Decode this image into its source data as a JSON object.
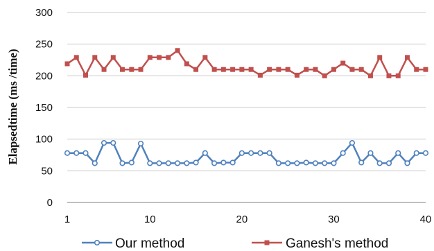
{
  "chart_data": {
    "type": "line",
    "title": "",
    "xlabel": "",
    "ylabel": "Elapsedtime (ms /time)",
    "xlim": [
      1,
      40
    ],
    "ylim": [
      0,
      300
    ],
    "x_ticks": [
      1,
      10,
      20,
      30,
      40
    ],
    "y_ticks": [
      0,
      50,
      100,
      150,
      200,
      250,
      300
    ],
    "grid": "horizontal",
    "legend_position": "bottom",
    "x": [
      1,
      2,
      3,
      4,
      5,
      6,
      7,
      8,
      9,
      10,
      11,
      12,
      13,
      14,
      15,
      16,
      17,
      18,
      19,
      20,
      21,
      22,
      23,
      24,
      25,
      26,
      27,
      28,
      29,
      30,
      31,
      32,
      33,
      34,
      35,
      36,
      37,
      38,
      39,
      40
    ],
    "series": [
      {
        "name": "Our method",
        "color": "#4F81BD",
        "marker": "circle",
        "values": [
          78,
          78,
          78,
          62,
          94,
          94,
          62,
          63,
          93,
          62,
          62,
          62,
          62,
          62,
          63,
          78,
          62,
          63,
          63,
          78,
          78,
          78,
          78,
          62,
          62,
          62,
          63,
          62,
          62,
          62,
          78,
          94,
          63,
          78,
          62,
          62,
          78,
          62,
          78,
          78
        ]
      },
      {
        "name": "Ganesh's method",
        "color": "#C0504D",
        "marker": "square",
        "values": [
          219,
          229,
          201,
          229,
          210,
          229,
          210,
          210,
          210,
          229,
          229,
          229,
          240,
          219,
          210,
          229,
          210,
          210,
          210,
          210,
          210,
          201,
          210,
          210,
          210,
          201,
          210,
          210,
          200,
          210,
          220,
          210,
          210,
          200,
          229,
          200,
          200,
          229,
          210,
          210
        ]
      }
    ]
  }
}
